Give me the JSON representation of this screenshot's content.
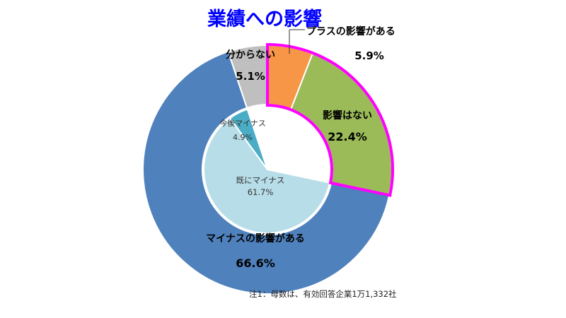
{
  "chart_data": {
    "type": "pie",
    "title": "業績への影響",
    "outer_ring": [
      {
        "name": "プラスの影響がある",
        "value": 5.9,
        "label": "5.9%",
        "color": "#f79646"
      },
      {
        "name": "影響はない",
        "value": 22.4,
        "label": "22.4%",
        "color": "#9bbb59"
      },
      {
        "name": "マイナスの影響がある",
        "value": 66.6,
        "label": "66.6%",
        "color": "#4f81bd"
      },
      {
        "name": "分からない",
        "value": 5.1,
        "label": "5.1%",
        "color": "#bfbfbf"
      }
    ],
    "inner_ring": [
      {
        "name": "既にマイナス",
        "value": 61.7,
        "label": "61.7%",
        "color": "#b7dde8"
      },
      {
        "name": "今後マイナス",
        "value": 4.9,
        "label": "4.9%",
        "color": "#4bacc6"
      }
    ],
    "highlight": {
      "items": [
        "プラスの影響がある",
        "影響はない"
      ],
      "color": "#ff00ff"
    },
    "title_color": "#0000ff"
  },
  "note": "注1：母数は、有効回答企業1万1,332社"
}
